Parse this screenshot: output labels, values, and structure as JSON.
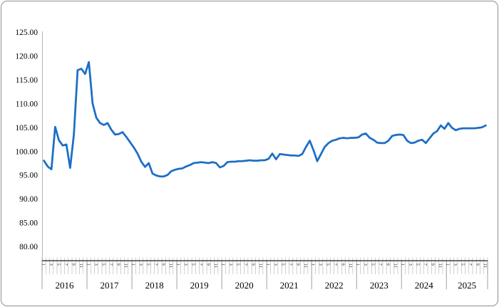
{
  "window": {
    "background": "#ffffff",
    "border_color": "#8f8f8f"
  },
  "chart_data": {
    "type": "line",
    "title": "",
    "legend": "none",
    "gridlines": "none",
    "y_axis": {
      "tick_labels": [
        "125.00",
        "120.00",
        "115.00",
        "110.00",
        "105.00",
        "100.00",
        "95.00",
        "90.00",
        "85.00",
        "80.00"
      ],
      "min": 80,
      "max": 125,
      "tick_step": 5
    },
    "x_axis": {
      "years": [
        "2016",
        "2017",
        "2018",
        "2019",
        "2020",
        "2021",
        "2022",
        "2023",
        "2024",
        "2025"
      ],
      "months_per_year": [
        12,
        12,
        12,
        12,
        12,
        12,
        12,
        12,
        12,
        11
      ],
      "month_tick_labels_per_year": [
        "1",
        "3",
        "5",
        "7",
        "9",
        "11"
      ],
      "note_visible_structure": "monthly ticks, odd months labeled (rotated 90), year labels below"
    },
    "series": [
      {
        "name": "Index",
        "color": "#1b6fc5",
        "values": [
          98.0,
          96.8,
          96.2,
          105.1,
          102.3,
          101.2,
          101.4,
          96.5,
          103.5,
          117.0,
          117.3,
          116.2,
          118.7,
          110.0,
          107.0,
          105.9,
          105.5,
          105.9,
          104.5,
          103.5,
          103.6,
          104.0,
          103.0,
          101.9,
          100.8,
          99.5,
          97.8,
          96.7,
          97.5,
          95.3,
          94.9,
          94.7,
          94.7,
          95.0,
          95.8,
          96.1,
          96.3,
          96.4,
          96.8,
          97.1,
          97.5,
          97.6,
          97.7,
          97.6,
          97.5,
          97.7,
          97.5,
          96.6,
          96.9,
          97.7,
          97.8,
          97.8,
          97.9,
          97.9,
          98.0,
          98.1,
          98.0,
          98.0,
          98.1,
          98.1,
          98.4,
          99.5,
          98.3,
          99.4,
          99.3,
          99.2,
          99.1,
          99.1,
          99.0,
          99.4,
          100.9,
          102.2,
          100.2,
          97.9,
          99.4,
          100.9,
          101.7,
          102.2,
          102.4,
          102.7,
          102.8,
          102.7,
          102.8,
          102.8,
          102.9,
          103.5,
          103.7,
          102.8,
          102.4,
          101.8,
          101.7,
          101.7,
          102.2,
          103.2,
          103.4,
          103.5,
          103.4,
          102.2,
          101.7,
          101.8,
          102.2,
          102.4,
          101.7,
          102.7,
          103.7,
          104.2,
          105.4,
          104.7,
          105.9,
          104.9,
          104.4,
          104.7,
          104.8,
          104.8,
          104.8,
          104.8,
          104.9,
          105.0,
          105.4
        ]
      }
    ],
    "colors": {
      "line": "#1b6fc5",
      "x_axis_line": "#1a1a1a",
      "y_axis_line": "#b3b3b3",
      "month_tick": "#b0b0b0",
      "year_separator": "#8a8a8a",
      "label_text": "#000000"
    }
  }
}
